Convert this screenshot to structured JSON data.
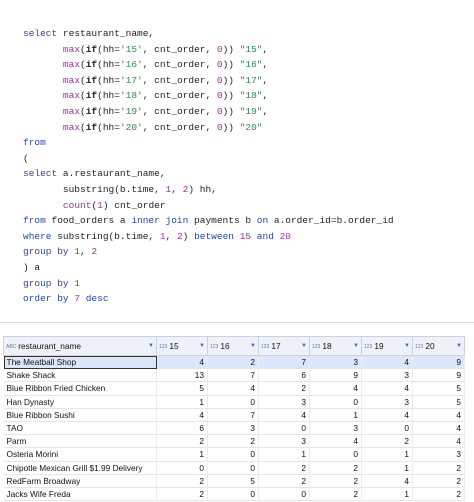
{
  "palette": {
    "keyword": "#2447a8",
    "function": "#a0309c",
    "string": "#2f8a4a",
    "number": "#a0309c",
    "plain": "#222222",
    "bold": "#222222"
  },
  "code": [
    [
      {
        "text": "select",
        "style": "keyword"
      },
      {
        "text": " restaurant_name,",
        "style": "plain"
      }
    ],
    [
      {
        "text": "       ",
        "style": "plain"
      },
      {
        "text": "max",
        "style": "function"
      },
      {
        "text": "(",
        "style": "plain"
      },
      {
        "text": "if",
        "style": "bold"
      },
      {
        "text": "(hh=",
        "style": "plain"
      },
      {
        "text": "'15'",
        "style": "string"
      },
      {
        "text": ", cnt_order, ",
        "style": "plain"
      },
      {
        "text": "0",
        "style": "number"
      },
      {
        "text": ")) ",
        "style": "plain"
      },
      {
        "text": "\"15\"",
        "style": "string"
      },
      {
        "text": ",",
        "style": "plain"
      }
    ],
    [
      {
        "text": "       ",
        "style": "plain"
      },
      {
        "text": "max",
        "style": "function"
      },
      {
        "text": "(",
        "style": "plain"
      },
      {
        "text": "if",
        "style": "bold"
      },
      {
        "text": "(hh=",
        "style": "plain"
      },
      {
        "text": "'16'",
        "style": "string"
      },
      {
        "text": ", cnt_order, ",
        "style": "plain"
      },
      {
        "text": "0",
        "style": "number"
      },
      {
        "text": ")) ",
        "style": "plain"
      },
      {
        "text": "\"16\"",
        "style": "string"
      },
      {
        "text": ",",
        "style": "plain"
      }
    ],
    [
      {
        "text": "       ",
        "style": "plain"
      },
      {
        "text": "max",
        "style": "function"
      },
      {
        "text": "(",
        "style": "plain"
      },
      {
        "text": "if",
        "style": "bold"
      },
      {
        "text": "(hh=",
        "style": "plain"
      },
      {
        "text": "'17'",
        "style": "string"
      },
      {
        "text": ", cnt_order, ",
        "style": "plain"
      },
      {
        "text": "0",
        "style": "number"
      },
      {
        "text": ")) ",
        "style": "plain"
      },
      {
        "text": "\"17\"",
        "style": "string"
      },
      {
        "text": ",",
        "style": "plain"
      }
    ],
    [
      {
        "text": "       ",
        "style": "plain"
      },
      {
        "text": "max",
        "style": "function"
      },
      {
        "text": "(",
        "style": "plain"
      },
      {
        "text": "if",
        "style": "bold"
      },
      {
        "text": "(hh=",
        "style": "plain"
      },
      {
        "text": "'18'",
        "style": "string"
      },
      {
        "text": ", cnt_order, ",
        "style": "plain"
      },
      {
        "text": "0",
        "style": "number"
      },
      {
        "text": ")) ",
        "style": "plain"
      },
      {
        "text": "\"18\"",
        "style": "string"
      },
      {
        "text": ",",
        "style": "plain"
      }
    ],
    [
      {
        "text": "       ",
        "style": "plain"
      },
      {
        "text": "max",
        "style": "function"
      },
      {
        "text": "(",
        "style": "plain"
      },
      {
        "text": "if",
        "style": "bold"
      },
      {
        "text": "(hh=",
        "style": "plain"
      },
      {
        "text": "'19'",
        "style": "string"
      },
      {
        "text": ", cnt_order, ",
        "style": "plain"
      },
      {
        "text": "0",
        "style": "number"
      },
      {
        "text": ")) ",
        "style": "plain"
      },
      {
        "text": "\"19\"",
        "style": "string"
      },
      {
        "text": ",",
        "style": "plain"
      }
    ],
    [
      {
        "text": "       ",
        "style": "plain"
      },
      {
        "text": "max",
        "style": "function"
      },
      {
        "text": "(",
        "style": "plain"
      },
      {
        "text": "if",
        "style": "bold"
      },
      {
        "text": "(hh=",
        "style": "plain"
      },
      {
        "text": "'20'",
        "style": "string"
      },
      {
        "text": ", cnt_order, ",
        "style": "plain"
      },
      {
        "text": "0",
        "style": "number"
      },
      {
        "text": ")) ",
        "style": "plain"
      },
      {
        "text": "\"20\"",
        "style": "string"
      }
    ],
    [
      {
        "text": "from",
        "style": "keyword"
      }
    ],
    [
      {
        "text": "(",
        "style": "plain"
      }
    ],
    [
      {
        "text": "select",
        "style": "keyword"
      },
      {
        "text": " a.restaurant_name,",
        "style": "plain"
      }
    ],
    [
      {
        "text": "       substring(b.time, ",
        "style": "plain"
      },
      {
        "text": "1",
        "style": "number"
      },
      {
        "text": ", ",
        "style": "plain"
      },
      {
        "text": "2",
        "style": "number"
      },
      {
        "text": ") hh,",
        "style": "plain"
      }
    ],
    [
      {
        "text": "       ",
        "style": "plain"
      },
      {
        "text": "count",
        "style": "function"
      },
      {
        "text": "(",
        "style": "plain"
      },
      {
        "text": "1",
        "style": "number"
      },
      {
        "text": ") cnt_order",
        "style": "plain"
      }
    ],
    [
      {
        "text": "from",
        "style": "keyword"
      },
      {
        "text": " food_orders a ",
        "style": "plain"
      },
      {
        "text": "inner join",
        "style": "keyword"
      },
      {
        "text": " payments b ",
        "style": "plain"
      },
      {
        "text": "on",
        "style": "keyword"
      },
      {
        "text": " a.order_id=b.order_id",
        "style": "plain"
      }
    ],
    [
      {
        "text": "where",
        "style": "keyword"
      },
      {
        "text": " substring(b.time, ",
        "style": "plain"
      },
      {
        "text": "1",
        "style": "number"
      },
      {
        "text": ", ",
        "style": "plain"
      },
      {
        "text": "2",
        "style": "number"
      },
      {
        "text": ") ",
        "style": "plain"
      },
      {
        "text": "between",
        "style": "keyword"
      },
      {
        "text": " ",
        "style": "plain"
      },
      {
        "text": "15",
        "style": "number"
      },
      {
        "text": " ",
        "style": "plain"
      },
      {
        "text": "and",
        "style": "keyword"
      },
      {
        "text": " ",
        "style": "plain"
      },
      {
        "text": "20",
        "style": "number"
      }
    ],
    [
      {
        "text": "group by",
        "style": "keyword"
      },
      {
        "text": " ",
        "style": "plain"
      },
      {
        "text": "1",
        "style": "number"
      },
      {
        "text": ", ",
        "style": "plain"
      },
      {
        "text": "2",
        "style": "number"
      }
    ],
    [
      {
        "text": ") a",
        "style": "plain"
      }
    ],
    [
      {
        "text": "group by",
        "style": "keyword"
      },
      {
        "text": " ",
        "style": "plain"
      },
      {
        "text": "1",
        "style": "number"
      }
    ],
    [
      {
        "text": "order by",
        "style": "keyword"
      },
      {
        "text": " ",
        "style": "plain"
      },
      {
        "text": "7",
        "style": "number"
      },
      {
        "text": " ",
        "style": "plain"
      },
      {
        "text": "desc",
        "style": "keyword"
      }
    ]
  ],
  "table": {
    "columns": [
      {
        "type_label": "ABC",
        "name": "restaurant_name"
      },
      {
        "type_label": "123",
        "name": "15"
      },
      {
        "type_label": "123",
        "name": "16"
      },
      {
        "type_label": "123",
        "name": "17"
      },
      {
        "type_label": "123",
        "name": "18"
      },
      {
        "type_label": "123",
        "name": "19"
      },
      {
        "type_label": "123",
        "name": "20"
      }
    ],
    "rows": [
      [
        "The Meatball Shop",
        4,
        2,
        7,
        3,
        4,
        9
      ],
      [
        "Shake Shack",
        13,
        7,
        6,
        9,
        3,
        9
      ],
      [
        "Blue Ribbon Fried Chicken",
        5,
        4,
        2,
        4,
        4,
        5
      ],
      [
        "Han Dynasty",
        1,
        0,
        3,
        0,
        3,
        5
      ],
      [
        "Blue Ribbon Sushi",
        4,
        7,
        4,
        1,
        4,
        4
      ],
      [
        "TAO",
        6,
        3,
        0,
        3,
        0,
        4
      ],
      [
        "Parm",
        2,
        2,
        3,
        4,
        2,
        4
      ],
      [
        "Osteria Morini",
        1,
        0,
        1,
        0,
        1,
        3
      ],
      [
        "Chipotle Mexican Grill $1.99 Delivery",
        0,
        0,
        2,
        2,
        1,
        2
      ],
      [
        "RedFarm Broadway",
        2,
        5,
        2,
        2,
        4,
        2
      ],
      [
        "Jacks Wife Freda",
        2,
        0,
        0,
        2,
        1,
        2
      ]
    ]
  }
}
